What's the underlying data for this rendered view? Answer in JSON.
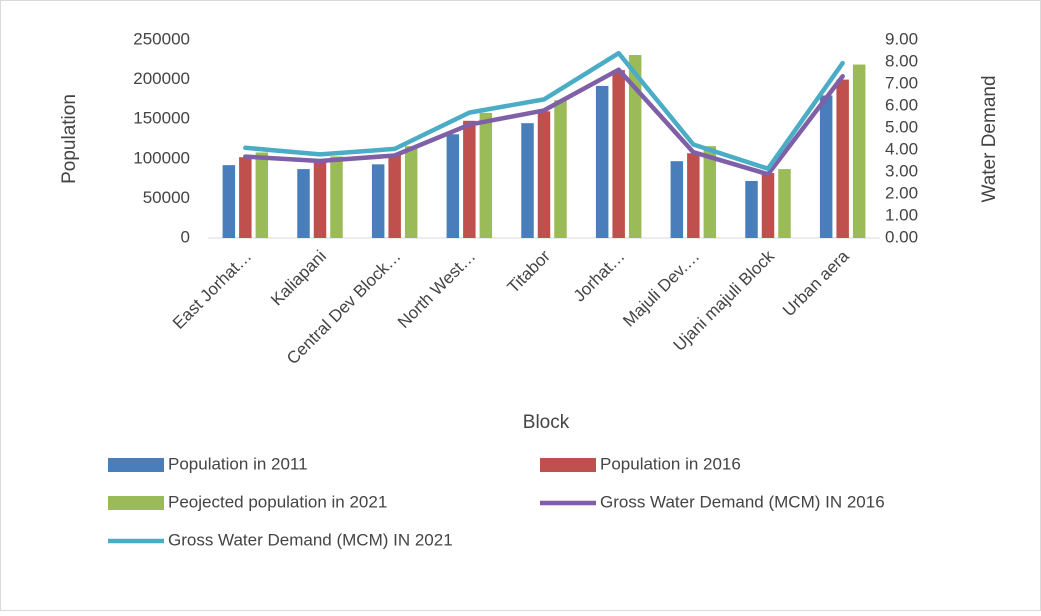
{
  "chart_data": {
    "type": "bar",
    "x_label": "Block",
    "y_label": "Population",
    "y2_label": "Water Demand",
    "categories": [
      "East Jorhat…",
      "Kaliapani",
      "Central Dev Block…",
      "North West…",
      "Titabor",
      "Jorhat…",
      "Majuli Dev.…",
      "Ujani majuli Block",
      "Urban aera"
    ],
    "series": [
      {
        "name": "Population in 2011",
        "color": "#4a7ebb",
        "type": "bar",
        "values": [
          92000,
          87000,
          93000,
          131000,
          145000,
          192000,
          97000,
          72000,
          180000
        ]
      },
      {
        "name": "Population in 2016",
        "color": "#c0504d",
        "type": "bar",
        "values": [
          102000,
          97000,
          105000,
          148000,
          160000,
          212000,
          107000,
          82000,
          200000
        ]
      },
      {
        "name": "Peojected population in 2021",
        "color": "#9bbb59",
        "type": "bar",
        "values": [
          108000,
          103000,
          116000,
          158000,
          174000,
          231000,
          116000,
          87000,
          219000
        ]
      },
      {
        "name": "Gross Water Demand (MCM) IN 2016",
        "color": "#7f5fa6",
        "type": "line",
        "axis": "y2",
        "values": [
          3.7,
          3.5,
          3.75,
          5.15,
          5.8,
          7.65,
          3.9,
          2.9,
          7.35
        ]
      },
      {
        "name": "Gross Water Demand (MCM) IN 2021",
        "color": "#4bacc6",
        "type": "line",
        "axis": "y2",
        "values": [
          4.1,
          3.8,
          4.05,
          5.7,
          6.3,
          8.4,
          4.25,
          3.15,
          7.95
        ]
      }
    ],
    "ylim": [
      0,
      250000
    ],
    "yticks": [
      0,
      50000,
      100000,
      150000,
      200000,
      250000
    ],
    "y2lim": [
      0,
      9
    ],
    "y2ticks": [
      {
        "value": 0,
        "label": "0.00"
      },
      {
        "value": 1,
        "label": "1.00"
      },
      {
        "value": 2,
        "label": "2.00"
      },
      {
        "value": 3,
        "label": "3.00"
      },
      {
        "value": 4,
        "label": "4.00"
      },
      {
        "value": 5,
        "label": "5.00"
      },
      {
        "value": 6,
        "label": "6.00"
      },
      {
        "value": 7,
        "label": "7.00"
      },
      {
        "value": 8,
        "label": "8.00"
      },
      {
        "value": 9,
        "label": "9.00"
      }
    ],
    "legend": "bottom"
  }
}
